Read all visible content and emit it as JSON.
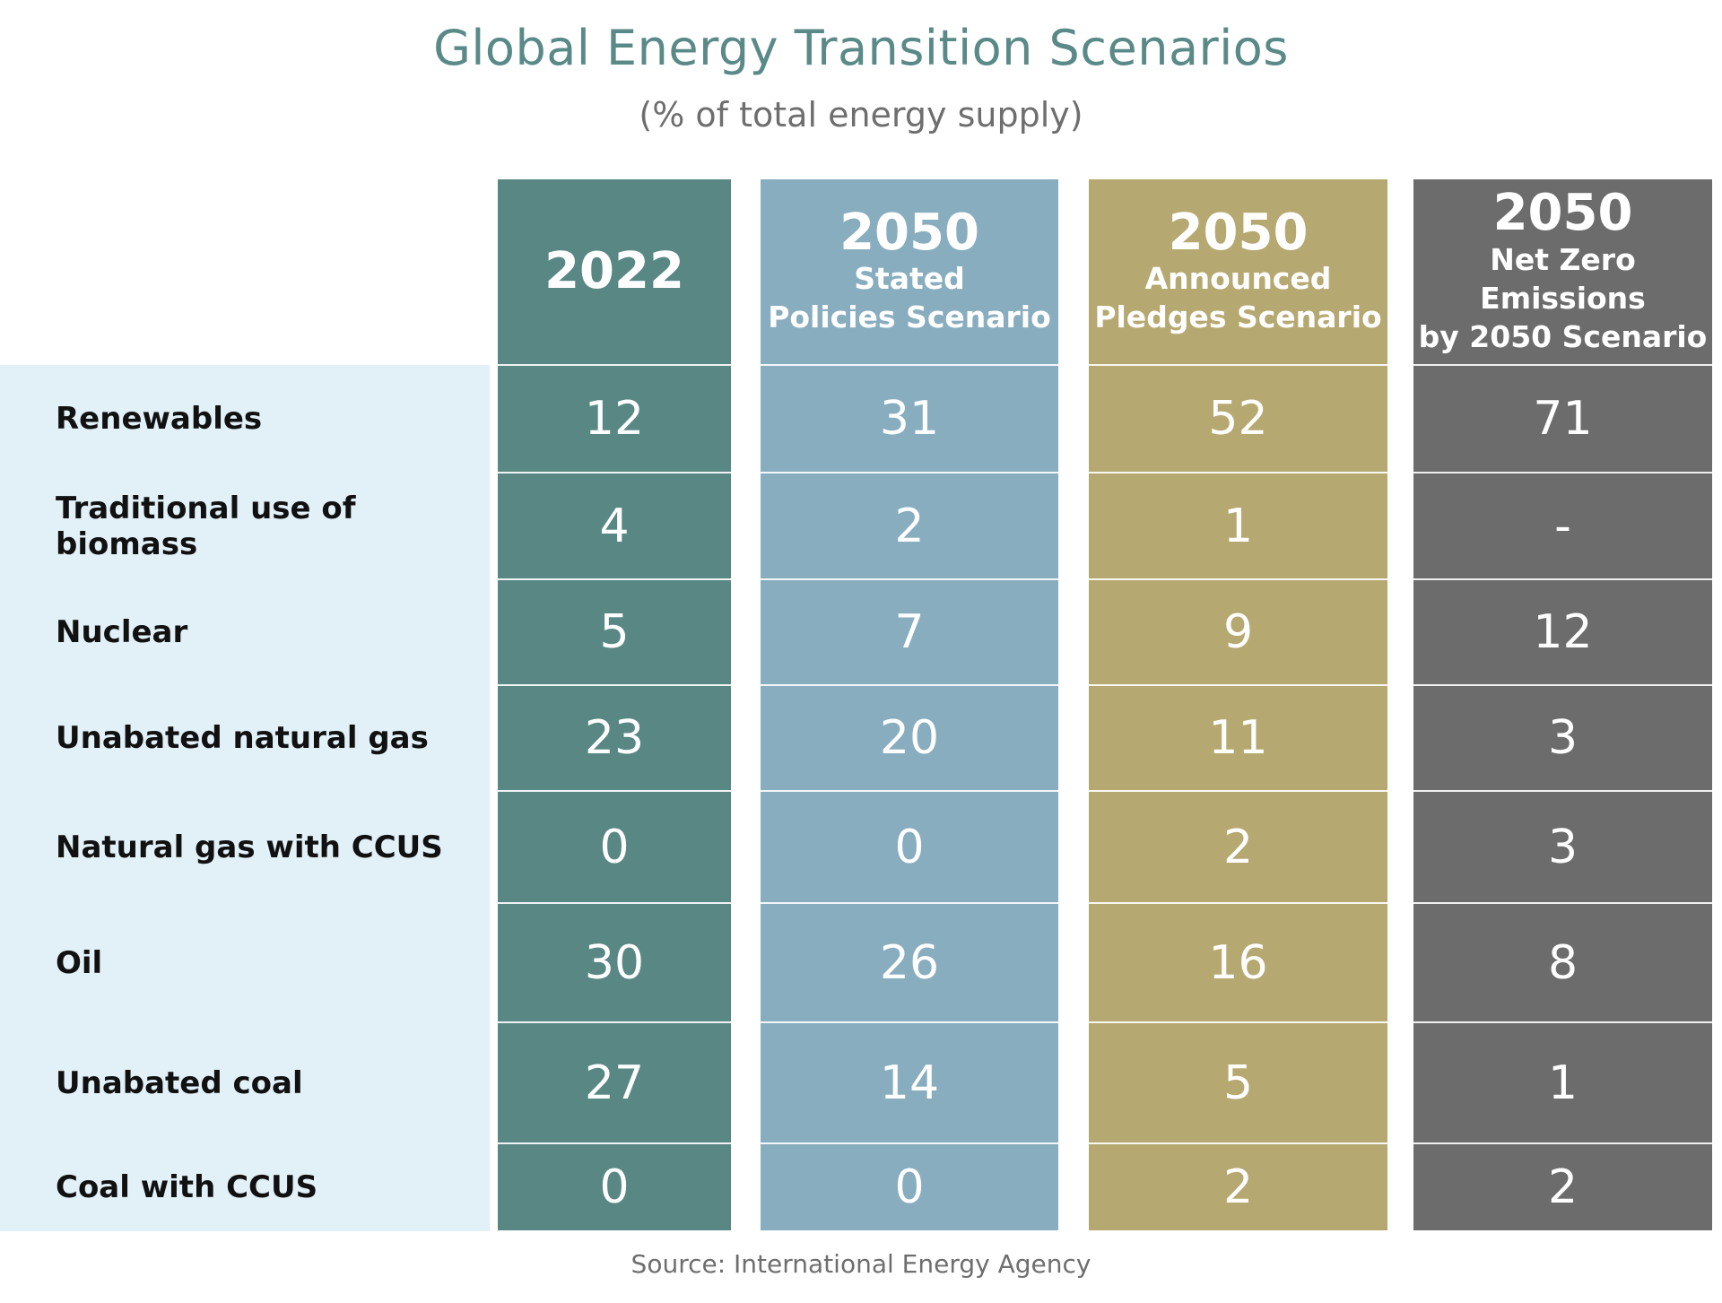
{
  "title": "Global Energy Transition Scenarios",
  "subtitle": "(% of total energy supply)",
  "source": "Source: International Energy Agency",
  "colors": {
    "title": "#5a8a88",
    "col_2022": "#598884",
    "col_stated": "#88adbf",
    "col_announced": "#b6a871",
    "col_netzero": "#6c6c6c",
    "label_bg": "#e2f0f8"
  },
  "chart_data": {
    "type": "table",
    "title": "Global Energy Transition Scenarios",
    "subtitle": "(% of total energy supply)",
    "columns": [
      {
        "year": "2022",
        "subtitle": ""
      },
      {
        "year": "2050",
        "subtitle": "Stated\nPolicies Scenario"
      },
      {
        "year": "2050",
        "subtitle": "Announced\nPledges Scenario"
      },
      {
        "year": "2050",
        "subtitle": "Net Zero Emissions\nby 2050 Scenario"
      }
    ],
    "rows": [
      "Renewables",
      "Traditional use of biomass",
      "Nuclear",
      "Unabated natural gas",
      "Natural gas with CCUS",
      "Oil",
      "Unabated coal",
      "Coal with CCUS"
    ],
    "values": [
      [
        "12",
        "31",
        "52",
        "71"
      ],
      [
        "4",
        "2",
        "1",
        "-"
      ],
      [
        "5",
        "7",
        "9",
        "12"
      ],
      [
        "23",
        "20",
        "11",
        "3"
      ],
      [
        "0",
        "0",
        "2",
        "3"
      ],
      [
        "30",
        "26",
        "16",
        "8"
      ],
      [
        "27",
        "14",
        "5",
        "1"
      ],
      [
        "0",
        "0",
        "2",
        "2"
      ]
    ],
    "source": "Source: International Energy Agency"
  }
}
